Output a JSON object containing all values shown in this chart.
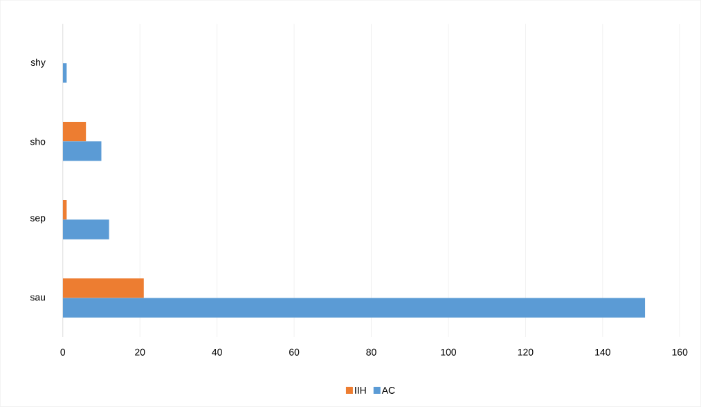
{
  "chart_data": {
    "type": "bar",
    "orientation": "horizontal",
    "categories": [
      "shy",
      "sho",
      "sep",
      "sau"
    ],
    "series": [
      {
        "name": "IIH",
        "color": "#ed7d31",
        "values": [
          0,
          6,
          1,
          21
        ]
      },
      {
        "name": "AC",
        "color": "#5b9bd5",
        "values": [
          1,
          10,
          12,
          151
        ]
      }
    ],
    "xlim": [
      0,
      160
    ],
    "xticks": [
      0,
      20,
      40,
      60,
      80,
      100,
      120,
      140,
      160
    ],
    "grid": "x",
    "legend": "bottom"
  }
}
